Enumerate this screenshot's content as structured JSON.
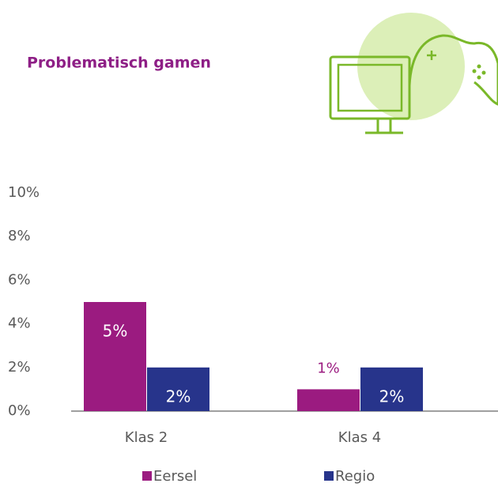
{
  "chart_data": {
    "type": "bar",
    "title": "Problematisch gamen",
    "categories": [
      "Klas 2",
      "Klas 4"
    ],
    "series": [
      {
        "name": "Eersel",
        "color": "#9b1b80",
        "values": [
          5,
          1
        ],
        "value_labels": [
          "5%",
          "1%"
        ]
      },
      {
        "name": "Regio",
        "color": "#27348b",
        "values": [
          2,
          2
        ],
        "value_labels": [
          "2%",
          "2%"
        ]
      }
    ],
    "ylim": [
      0,
      10
    ],
    "yticks": [
      {
        "value": 0,
        "label": "0%"
      },
      {
        "value": 2,
        "label": "2%"
      },
      {
        "value": 4,
        "label": "4%"
      },
      {
        "value": 6,
        "label": "6%"
      },
      {
        "value": 8,
        "label": "8%"
      },
      {
        "value": 10,
        "label": "10%"
      }
    ],
    "legend": "bottom"
  }
}
